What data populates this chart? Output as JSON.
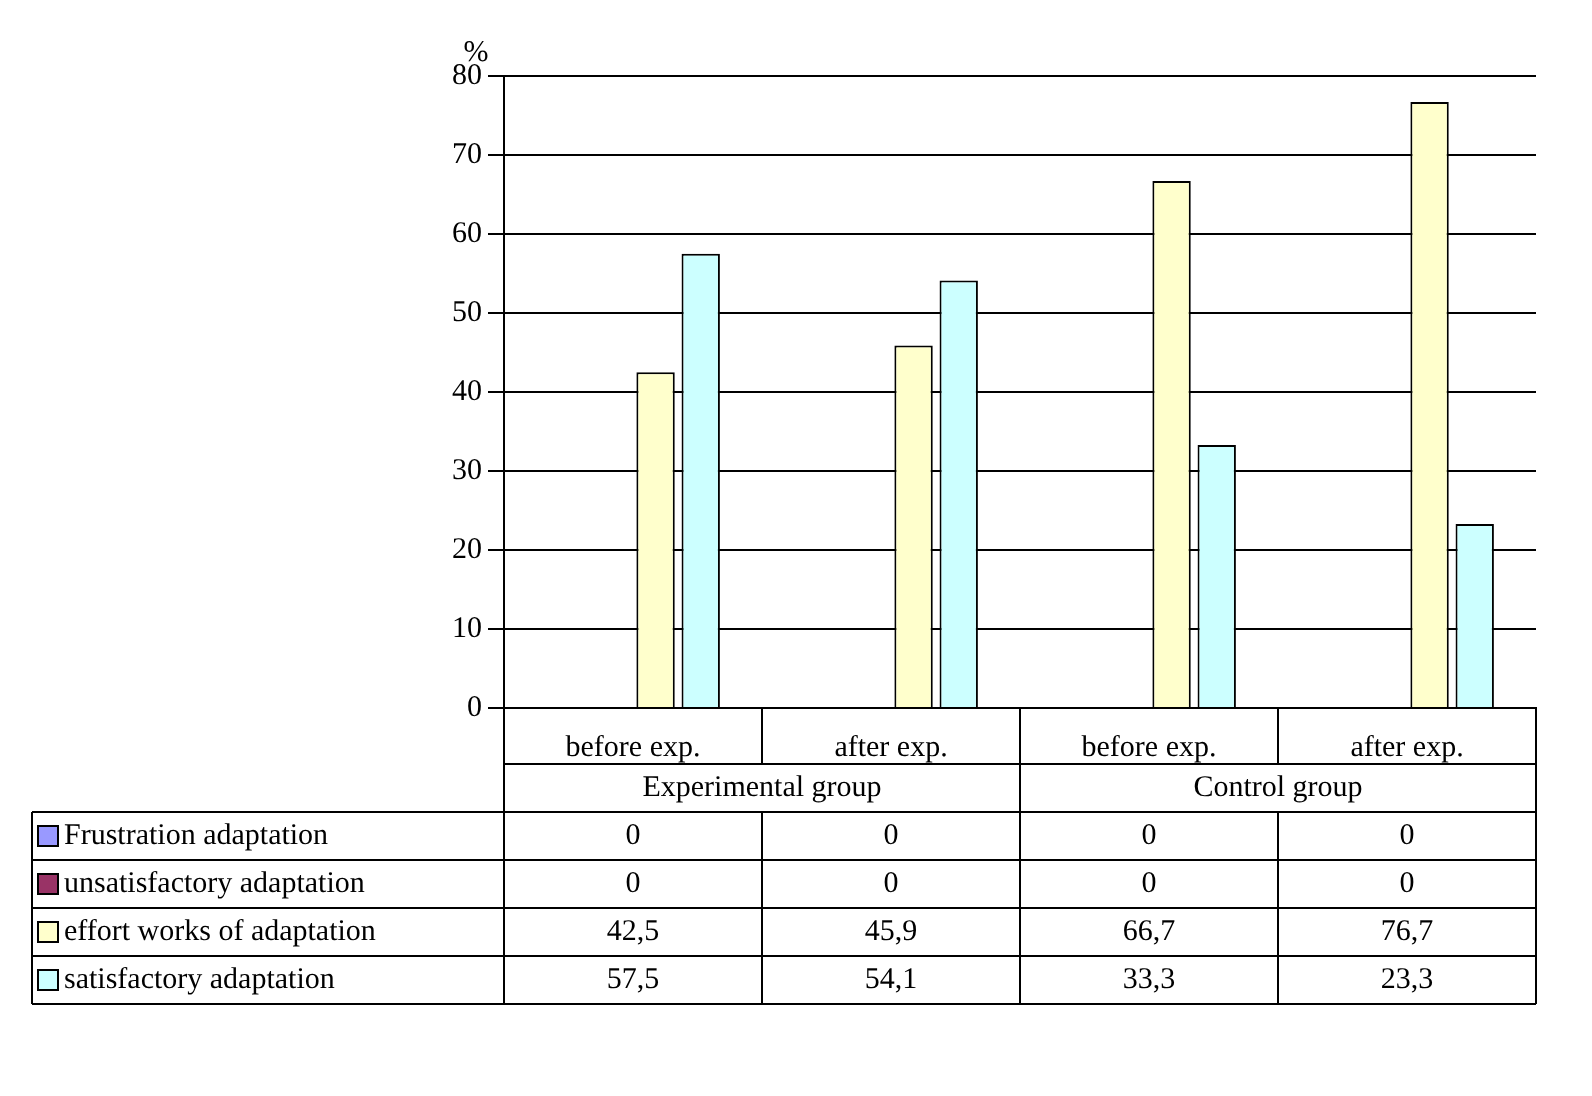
{
  "chart_data": {
    "type": "bar",
    "ylabel": "%",
    "categories": [
      "before exp.",
      "after exp.",
      "before exp.",
      "after exp."
    ],
    "annotations": [
      "Experimental group",
      "Control group"
    ],
    "series": [
      {
        "name": "Frustration adaptation",
        "color": "#9999ff",
        "values": [
          0,
          0,
          0,
          0
        ],
        "value_labels": [
          "0",
          "0",
          "0",
          "0"
        ]
      },
      {
        "name": "unsatisfactory adaptation",
        "color": "#993366",
        "values": [
          0,
          0,
          0,
          0
        ],
        "value_labels": [
          "0",
          "0",
          "0",
          "0"
        ]
      },
      {
        "name": "effort works of adaptation",
        "color": "#ffffcc",
        "values": [
          42.5,
          45.9,
          66.7,
          76.7
        ],
        "value_labels": [
          "42,5",
          "45,9",
          "66,7",
          "76,7"
        ]
      },
      {
        "name": "satisfactory adaptation",
        "color": "#ccffff",
        "values": [
          57.5,
          54.1,
          33.3,
          23.3
        ],
        "value_labels": [
          "57,5",
          "54,1",
          "33,3",
          "23,3"
        ]
      }
    ],
    "ylim": [
      0,
      80
    ],
    "yticks": [
      0,
      10,
      20,
      30,
      40,
      50,
      60,
      70,
      80
    ],
    "grid": "y",
    "legend": "bottom"
  }
}
